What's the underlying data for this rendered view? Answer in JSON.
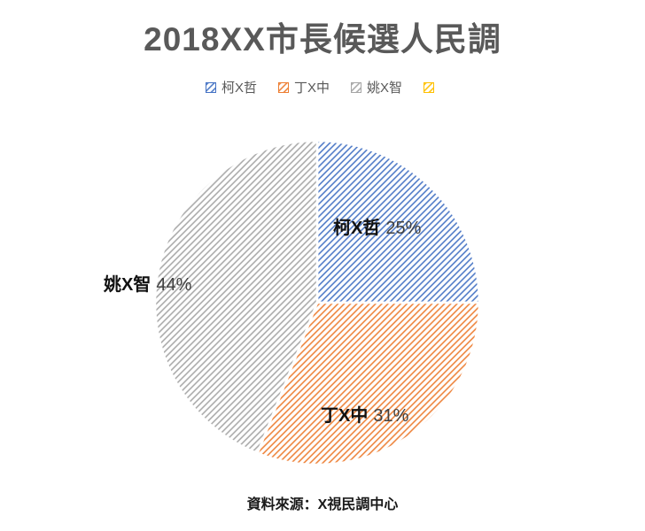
{
  "title": "2018XX市長候選人民調",
  "legend": {
    "items": [
      {
        "label": "柯X哲",
        "color": "#4472C4"
      },
      {
        "label": "丁X中",
        "color": "#ED7D31"
      },
      {
        "label": "姚X智",
        "color": "#A5A5A5"
      },
      {
        "label": "",
        "color": "#FFC000"
      }
    ]
  },
  "footer": {
    "source_text": "資料來源：X視民調中心"
  },
  "chart_data": {
    "type": "pie",
    "title": "2018XX市長候選人民調",
    "categories": [
      "柯X哲",
      "丁X中",
      "姚X智"
    ],
    "values": [
      25,
      31,
      44
    ],
    "unit": "%",
    "colors": [
      "#4472C4",
      "#ED7D31",
      "#A5A5A5"
    ],
    "start_angle_deg": 0,
    "direction": "clockwise",
    "hatch_pattern": "diagonal-lines",
    "legend_position": "top",
    "slice_labels": [
      {
        "name": "柯X哲",
        "value_text": "25%"
      },
      {
        "name": "丁X中",
        "value_text": "31%"
      },
      {
        "name": "姚X智",
        "value_text": "44%"
      }
    ],
    "source": "資料來源：X視民調中心"
  }
}
